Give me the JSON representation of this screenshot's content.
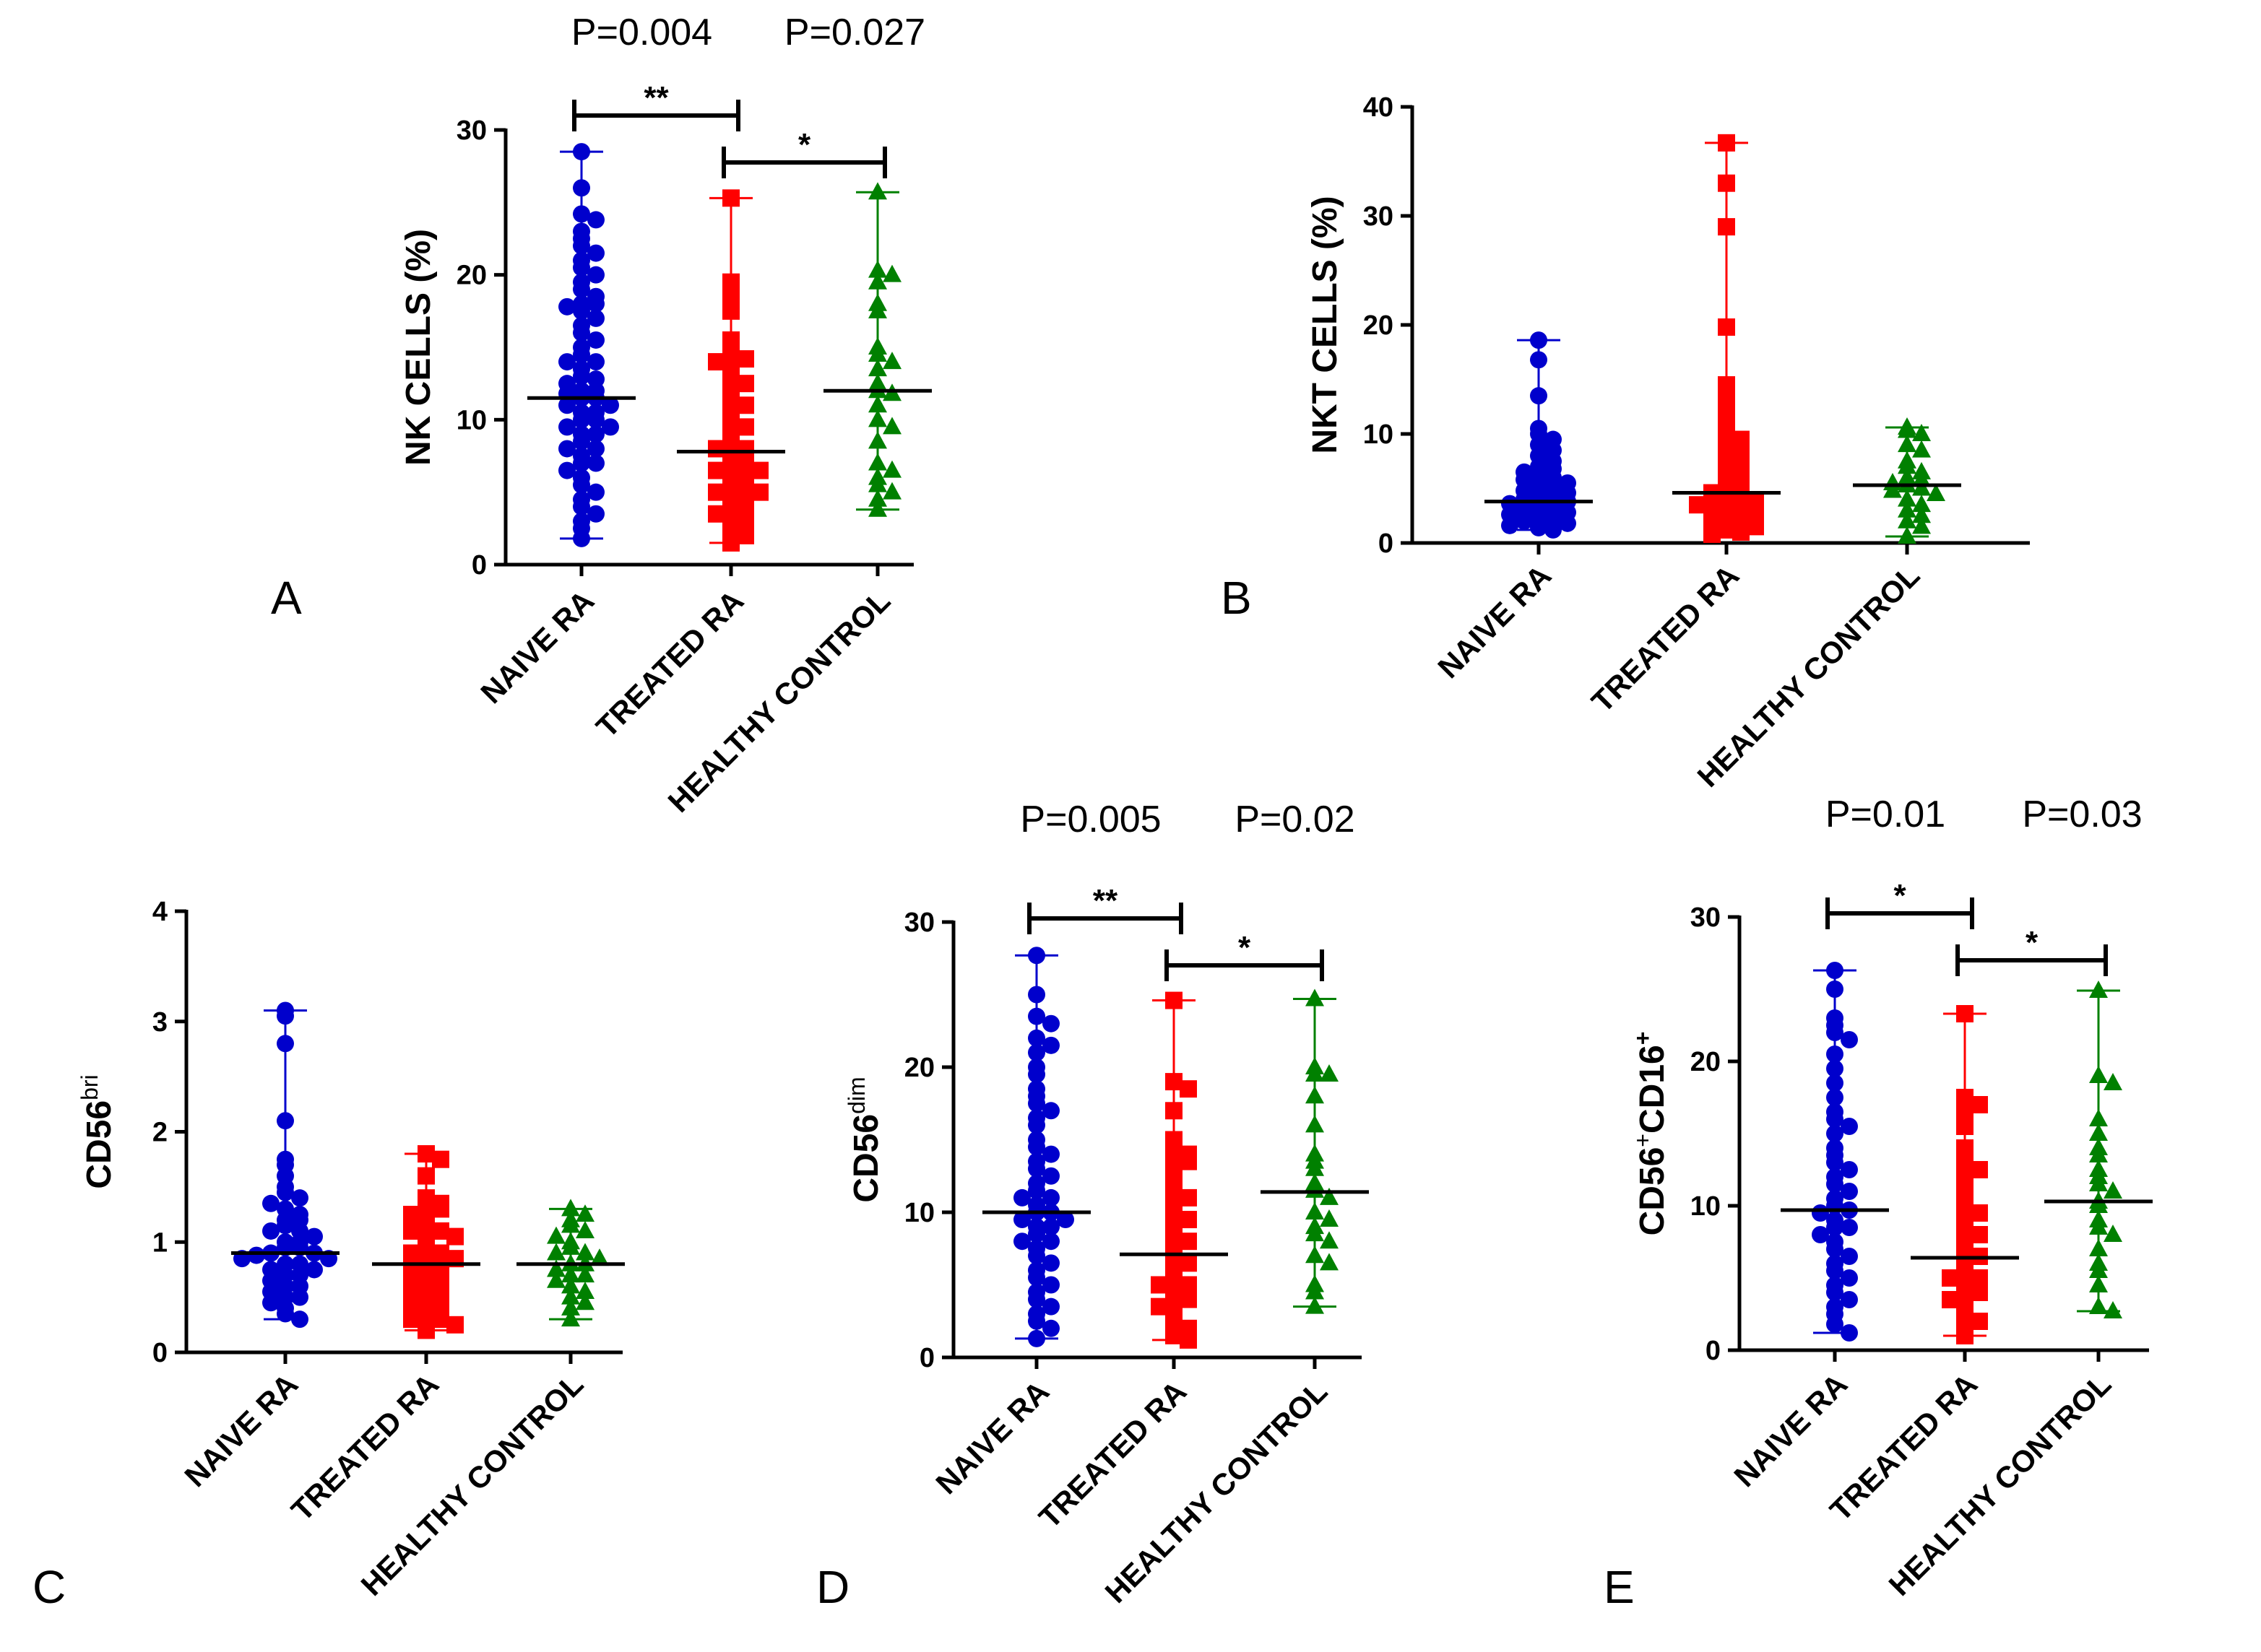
{
  "figure": {
    "categories": [
      "NAIVE RA",
      "TREATED RA",
      "HEALTHY CONTROL"
    ],
    "colors": {
      "naive": "#0000cc",
      "treated": "#ff0000",
      "healthy": "#008000",
      "axis": "#000000"
    },
    "markers": [
      "circle",
      "square",
      "triangle"
    ]
  },
  "chart_data": [
    {
      "panel": "A",
      "type": "scatter",
      "ylabel": "NK CELLS (%)",
      "ylim": [
        0,
        30
      ],
      "yticks": [
        0,
        10,
        20,
        30
      ],
      "categories": [
        "NAIVE RA",
        "TREATED RA",
        "HEALTHY CONTROL"
      ],
      "series": [
        {
          "category": "NAIVE RA",
          "median": 11.5,
          "min": 1.8,
          "max": 28.5,
          "values": [
            28.5,
            26,
            24.2,
            23.8,
            23,
            22.5,
            22,
            21.5,
            21,
            20.5,
            20,
            19.5,
            19,
            18.5,
            18,
            18,
            17.8,
            17.5,
            17,
            16.5,
            16,
            15.5,
            15,
            14.5,
            14,
            14,
            13.5,
            13,
            12.8,
            12.5,
            12,
            12,
            11.8,
            11.5,
            11.5,
            11,
            11,
            10.5,
            10.5,
            10,
            10,
            9.5,
            9.5,
            9,
            9,
            8.5,
            8,
            8,
            7.5,
            7,
            7,
            6.5,
            6,
            5.5,
            5,
            4.5,
            4,
            3.5,
            3,
            2.5,
            1.8
          ]
        },
        {
          "category": "TREATED RA",
          "median": 7.8,
          "min": 1.5,
          "max": 25.3,
          "values": [
            25.3,
            19.5,
            18.5,
            18,
            17.5,
            15.5,
            15,
            14.5,
            14.2,
            14,
            13.5,
            13,
            12.5,
            12,
            11.5,
            11,
            10.5,
            10,
            9.5,
            9,
            8.5,
            8,
            8,
            7.5,
            7,
            7,
            6.5,
            6.5,
            6,
            6,
            5.5,
            5.5,
            5,
            5,
            4.5,
            4.5,
            4,
            4,
            3.5,
            3,
            3,
            2.5,
            2,
            1.5
          ]
        },
        {
          "category": "HEALTHY CONTROL",
          "median": 12,
          "min": 3.8,
          "max": 25.7,
          "values": [
            25.7,
            20.3,
            20,
            19.5,
            18,
            17.5,
            15,
            14.5,
            14,
            13.5,
            12.5,
            12,
            11.8,
            11,
            10,
            9.5,
            8.5,
            7,
            6.5,
            6,
            5.5,
            5,
            4.5,
            3.8
          ]
        }
      ],
      "comparisons": [
        {
          "from": 0,
          "to": 1,
          "stars": "**",
          "p": "P=0.004"
        },
        {
          "from": 1,
          "to": 2,
          "stars": "*",
          "p": "P=0.027"
        }
      ]
    },
    {
      "panel": "B",
      "type": "scatter",
      "ylabel": "NKT CELLS (%)",
      "ylim": [
        0,
        40
      ],
      "yticks": [
        0,
        10,
        20,
        30,
        40
      ],
      "categories": [
        "NAIVE RA",
        "TREATED RA",
        "HEALTHY CONTROL"
      ],
      "series": [
        {
          "category": "NAIVE RA",
          "median": 3.8,
          "min": 1.2,
          "max": 18.6,
          "values": [
            18.6,
            16.8,
            13.5,
            10.5,
            10,
            9.5,
            9,
            8.5,
            8,
            7.5,
            7,
            6.8,
            6.5,
            6.2,
            6,
            5.8,
            5.5,
            5.2,
            5,
            4.8,
            4.6,
            4.4,
            4.2,
            4,
            3.8,
            3.6,
            3.4,
            3.2,
            3,
            2.8,
            2.6,
            2.4,
            2.2,
            2,
            1.8,
            1.6,
            1.4,
            1.2
          ]
        },
        {
          "category": "TREATED RA",
          "median": 4.6,
          "min": 0.8,
          "max": 36.7,
          "values": [
            36.7,
            33,
            29,
            19.8,
            14.5,
            13,
            12,
            11,
            10,
            9.5,
            9,
            8.5,
            8,
            7.5,
            7,
            6.5,
            6,
            5.5,
            5,
            4.8,
            4.6,
            4.4,
            4.2,
            4,
            3.8,
            3.5,
            3.2,
            3,
            2.8,
            2.5,
            2.2,
            2,
            1.8,
            1.5,
            1.2,
            1,
            0.8
          ]
        },
        {
          "category": "HEALTHY CONTROL",
          "median": 5.3,
          "min": 0.6,
          "max": 10.6,
          "values": [
            10.6,
            10.3,
            10,
            9,
            8.5,
            7.5,
            7,
            6.5,
            6,
            5.8,
            5.5,
            5.3,
            5,
            4.8,
            4.5,
            4,
            3.5,
            3,
            2.5,
            2,
            1.5,
            0.6
          ]
        }
      ],
      "comparisons": []
    },
    {
      "panel": "C",
      "type": "scatter",
      "ylabel": "CD56",
      "ylabel_sup": "bri",
      "ylim": [
        0,
        4
      ],
      "yticks": [
        0,
        1,
        2,
        3,
        4
      ],
      "categories": [
        "NAIVE RA",
        "TREATED RA",
        "HEALTHY CONTROL"
      ],
      "series": [
        {
          "category": "NAIVE RA",
          "median": 0.9,
          "min": 0.3,
          "max": 3.1,
          "values": [
            3.1,
            3.05,
            2.8,
            2.1,
            1.75,
            1.7,
            1.6,
            1.5,
            1.45,
            1.4,
            1.35,
            1.3,
            1.25,
            1.2,
            1.2,
            1.15,
            1.1,
            1.1,
            1.05,
            1,
            1,
            0.95,
            0.95,
            0.9,
            0.9,
            0.88,
            0.85,
            0.85,
            0.8,
            0.8,
            0.75,
            0.75,
            0.7,
            0.7,
            0.65,
            0.6,
            0.6,
            0.55,
            0.5,
            0.5,
            0.45,
            0.4,
            0.35,
            0.3
          ]
        },
        {
          "category": "TREATED RA",
          "median": 0.8,
          "min": 0.2,
          "max": 1.8,
          "values": [
            1.8,
            1.75,
            1.6,
            1.4,
            1.35,
            1.3,
            1.3,
            1.25,
            1.2,
            1.15,
            1.1,
            1.1,
            1.05,
            1,
            0.95,
            0.9,
            0.9,
            0.85,
            0.8,
            0.8,
            0.75,
            0.7,
            0.7,
            0.65,
            0.6,
            0.6,
            0.55,
            0.5,
            0.5,
            0.45,
            0.4,
            0.4,
            0.35,
            0.3,
            0.3,
            0.25,
            0.2
          ]
        },
        {
          "category": "HEALTHY CONTROL",
          "median": 0.8,
          "min": 0.3,
          "max": 1.3,
          "values": [
            1.3,
            1.25,
            1.2,
            1.15,
            1.1,
            1.05,
            1,
            0.95,
            0.9,
            0.9,
            0.85,
            0.8,
            0.8,
            0.75,
            0.7,
            0.7,
            0.65,
            0.6,
            0.55,
            0.5,
            0.45,
            0.4,
            0.3
          ]
        }
      ],
      "comparisons": []
    },
    {
      "panel": "D",
      "type": "scatter",
      "ylabel": "CD56",
      "ylabel_sup": "dim",
      "ylim": [
        0,
        30
      ],
      "yticks": [
        0,
        10,
        20,
        30
      ],
      "categories": [
        "NAIVE RA",
        "TREATED RA",
        "HEALTHY CONTROL"
      ],
      "series": [
        {
          "category": "NAIVE RA",
          "median": 10,
          "min": 1.3,
          "max": 27.7,
          "values": [
            27.7,
            25,
            23.5,
            23,
            22,
            21.5,
            21,
            20,
            19.5,
            18.5,
            18,
            17.5,
            17,
            16.5,
            16,
            15,
            14.5,
            14,
            13.5,
            13,
            12.5,
            12,
            11.5,
            11,
            11,
            10.5,
            10,
            10,
            9.5,
            9.5,
            9,
            9,
            8.5,
            8,
            8,
            7.5,
            7,
            6.5,
            6,
            5.5,
            5,
            4.5,
            4,
            3.5,
            3,
            2.5,
            2,
            1.3
          ]
        },
        {
          "category": "TREATED RA",
          "median": 7.1,
          "min": 1.2,
          "max": 24.6,
          "values": [
            24.6,
            19,
            18.5,
            17,
            15,
            14.5,
            14,
            13.5,
            13.5,
            13,
            12,
            11.5,
            11,
            10.5,
            10,
            9.5,
            9,
            8.5,
            8,
            7.5,
            7,
            6.5,
            6,
            5.5,
            5,
            5,
            4.5,
            4,
            4,
            3.5,
            3,
            2.5,
            2,
            1.5,
            1.2
          ]
        },
        {
          "category": "HEALTHY CONTROL",
          "median": 11.4,
          "min": 3.5,
          "max": 24.7,
          "values": [
            24.7,
            20,
            19.5,
            19.5,
            18,
            16,
            14,
            13.5,
            13,
            12,
            11.5,
            11,
            10,
            9.5,
            9,
            8.5,
            8,
            7,
            6.5,
            5,
            4.5,
            3.5
          ]
        }
      ],
      "comparisons": [
        {
          "from": 0,
          "to": 1,
          "stars": "**",
          "p": "P=0.005"
        },
        {
          "from": 1,
          "to": 2,
          "stars": "*",
          "p": "P=0.02"
        }
      ]
    },
    {
      "panel": "E",
      "type": "scatter",
      "ylabel": "CD56",
      "ylabel_sup": "+",
      "ylabel_mid": "CD16",
      "ylabel_sup2": "+",
      "ylim": [
        0,
        30
      ],
      "yticks": [
        0,
        10,
        20,
        30
      ],
      "categories": [
        "NAIVE RA",
        "TREATED RA",
        "HEALTHY CONTROL"
      ],
      "series": [
        {
          "category": "NAIVE RA",
          "median": 9.7,
          "min": 1.2,
          "max": 26.3,
          "values": [
            26.3,
            25,
            23,
            22.5,
            22,
            21.5,
            20.5,
            19.5,
            18.5,
            17.5,
            16.5,
            16,
            15.5,
            15,
            14,
            13.5,
            13,
            12.5,
            12,
            11.5,
            11,
            10.5,
            10,
            9.7,
            9.5,
            9,
            8.5,
            8.5,
            8,
            7.5,
            7,
            6.5,
            6,
            5.5,
            5,
            4.5,
            4,
            3.5,
            3,
            2.5,
            1.8,
            1.2
          ]
        },
        {
          "category": "TREATED RA",
          "median": 6.4,
          "min": 1,
          "max": 23.3,
          "values": [
            23.3,
            17.5,
            17,
            16.5,
            15.5,
            14,
            13.5,
            13,
            12.5,
            12,
            11,
            10.5,
            10,
            9.5,
            9,
            8.5,
            8,
            7.5,
            7,
            6.5,
            6,
            5.5,
            5,
            5,
            4.5,
            4.5,
            4,
            4,
            3.5,
            3,
            2.5,
            2,
            1.5,
            1
          ]
        },
        {
          "category": "HEALTHY CONTROL",
          "median": 10.3,
          "min": 2.7,
          "max": 24.9,
          "values": [
            24.9,
            19,
            18.5,
            16,
            15,
            14,
            13.5,
            12.5,
            12,
            11.5,
            11,
            10.3,
            10,
            9,
            8.5,
            8,
            7,
            6,
            5.5,
            4.5,
            3,
            2.7
          ]
        }
      ],
      "comparisons": [
        {
          "from": 0,
          "to": 1,
          "stars": "*",
          "p": "P=0.01"
        },
        {
          "from": 1,
          "to": 2,
          "stars": "*",
          "p": "P=0.03"
        }
      ]
    }
  ]
}
